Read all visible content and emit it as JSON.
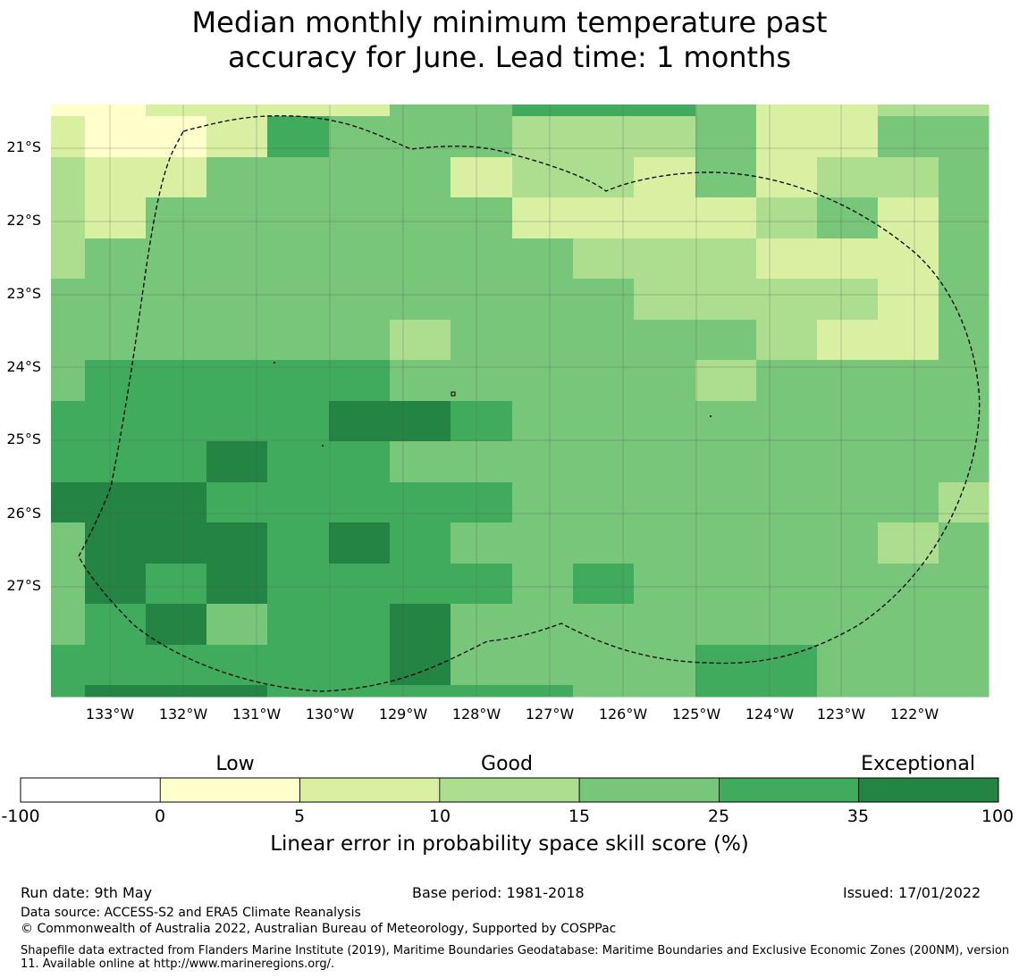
{
  "title_line1": "Median monthly minimum temperature past",
  "title_line2": "accuracy for June. Lead time: 1 months",
  "lat_labels": [
    "21°S",
    "22°S",
    "23°S",
    "24°S",
    "25°S",
    "26°S",
    "27°S"
  ],
  "lon_labels": [
    "133°W",
    "132°W",
    "131°W",
    "130°W",
    "129°W",
    "128°W",
    "127°W",
    "126°W",
    "125°W",
    "124°W",
    "123°W",
    "122°W"
  ],
  "legend": {
    "category_labels": [
      "Low",
      "Good",
      "Exceptional"
    ],
    "ticks": [
      "-100",
      "0",
      "5",
      "10",
      "15",
      "25",
      "35",
      "100"
    ],
    "label": "Linear error in probability space skill score (%)",
    "colors": [
      "#ffffff",
      "#ffffcc",
      "#d9f0a3",
      "#addd8e",
      "#78c679",
      "#41ab5d",
      "#238443"
    ]
  },
  "grid": {
    "rows": [
      "1122224455542233",
      "2112544433342244",
      "3224444233242334",
      "3244444422223424",
      "3444444443332224",
      "4444444444333324",
      "4444443444443224",
      "4555554444434444",
      "5555566544444444",
      "5556554444444444",
      "6665555544444443",
      "4666565444444434",
      "4656555545444444",
      "4564556444444444",
      "5555556444455444",
      "5666555554455444"
    ]
  },
  "footer": {
    "run_date": "Run date: 9th May",
    "base_period": "Base period: 1981-2018",
    "issued": "Issued: 17/01/2022",
    "data_source": "Data source: ACCESS-S2 and ERA5 Climate Reanalysis",
    "copyright": "© Commonwealth of Australia 2022, Australian Bureau of Meteorology, Supported by COSPPac",
    "shapefile": "Shapefile data extracted from Flanders Marine Institute (2019), Maritime Boundaries Geodatabase: Maritime Boundaries and Exclusive Economic Zones (200NM), version 11. Available online at http://www.marineregions.org/."
  }
}
